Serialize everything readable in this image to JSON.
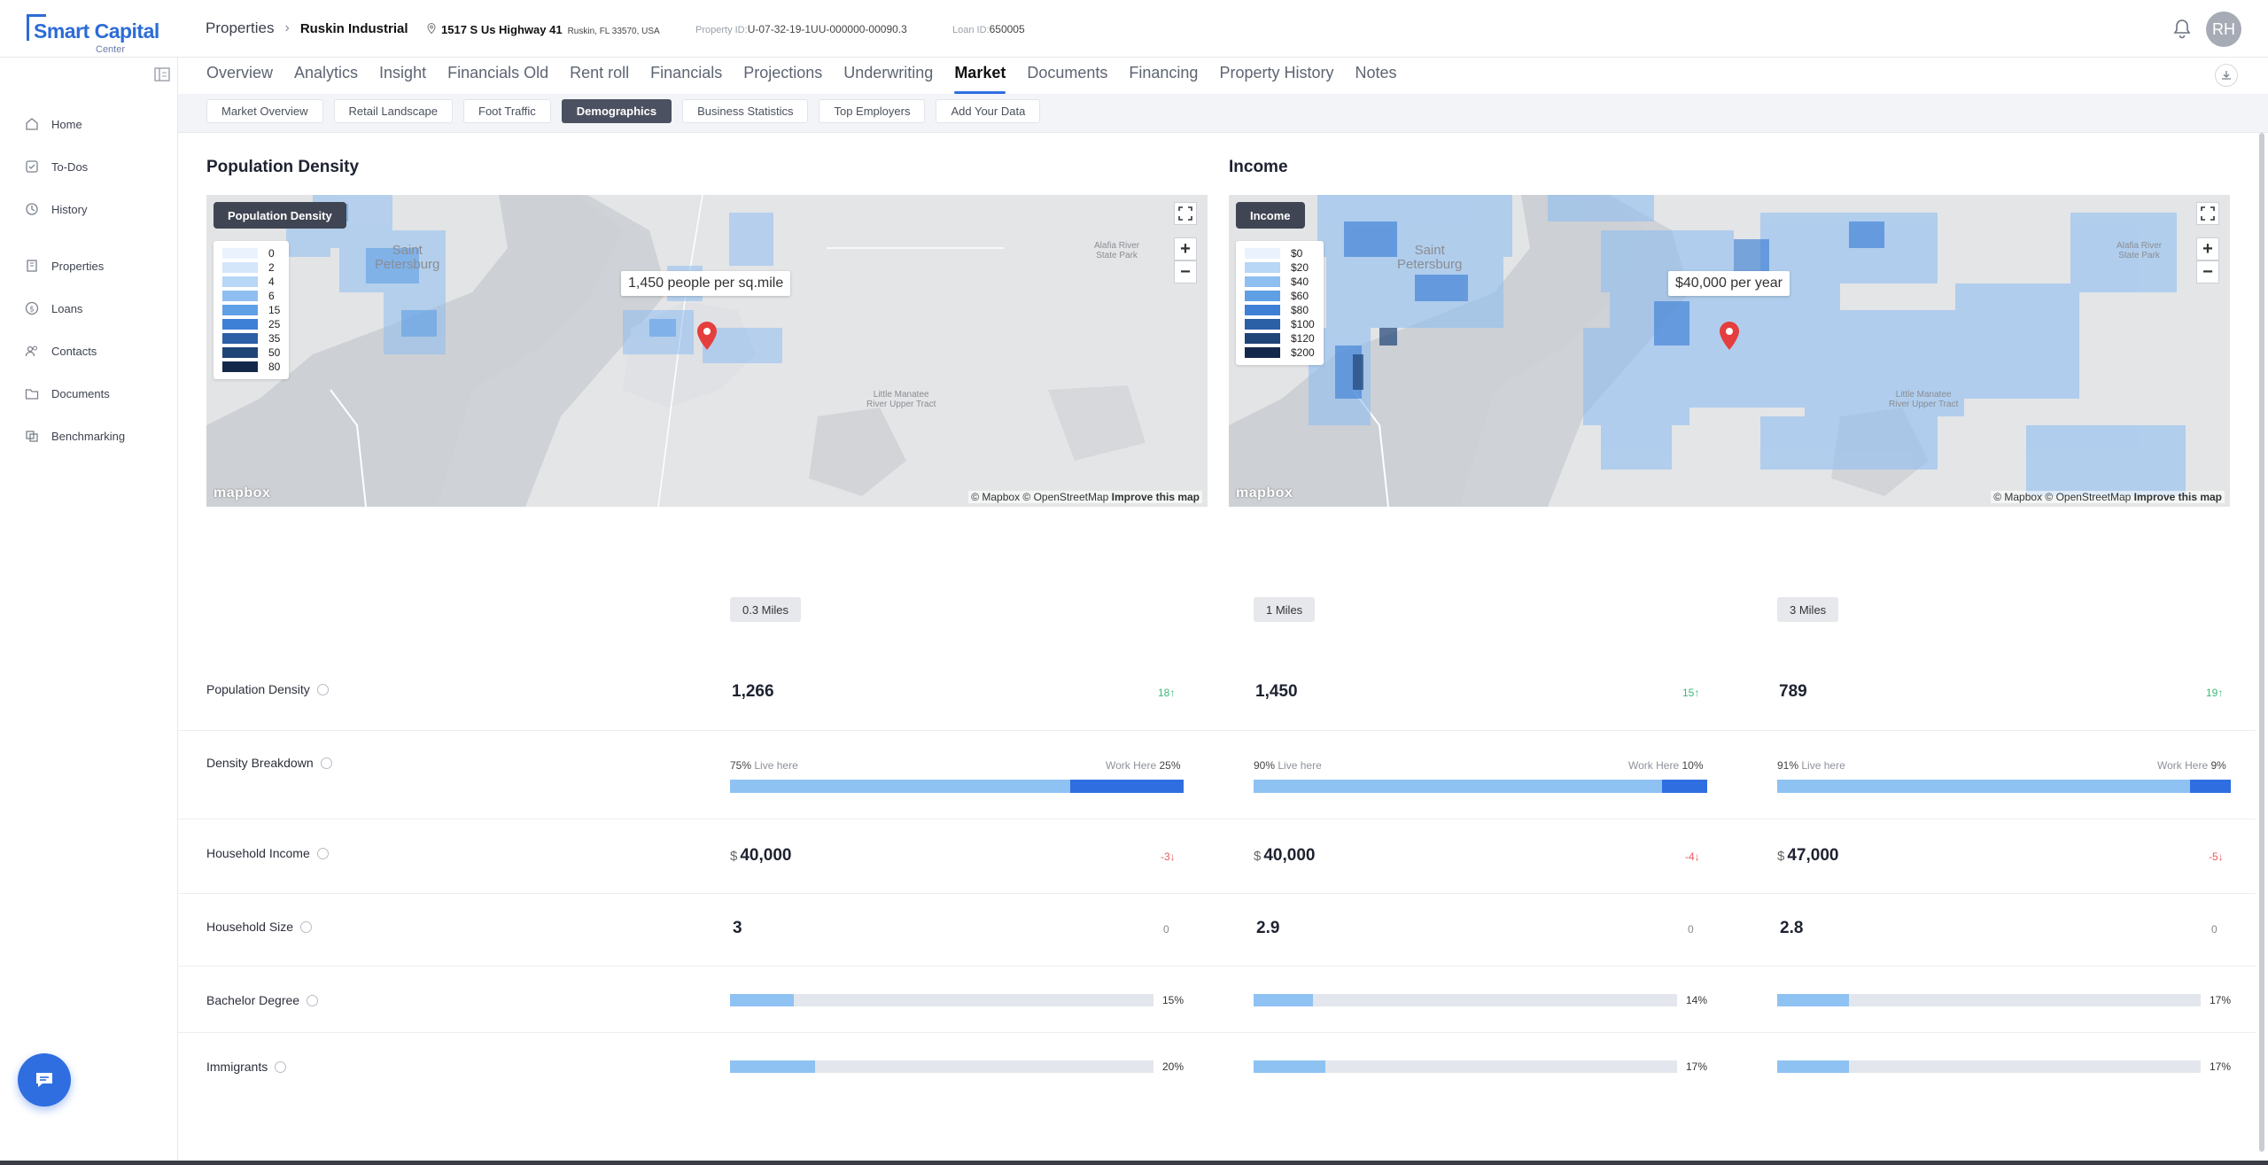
{
  "brand": {
    "name": "Smart Capital",
    "sub": "Center"
  },
  "breadcrumb": {
    "root": "Properties",
    "property": "Ruskin Industrial"
  },
  "address": {
    "street": "1517 S Us Highway 41",
    "city": "Ruskin, FL 33570, USA"
  },
  "property_id": {
    "label": "Property ID:",
    "value": "U-07-32-19-1UU-000000-00090.3"
  },
  "loan_id": {
    "label": "Loan ID:",
    "value": "650005"
  },
  "user": {
    "initials": "RH"
  },
  "sidebar": {
    "items": [
      {
        "label": "Home",
        "icon": "home-icon"
      },
      {
        "label": "To-Dos",
        "icon": "todo-icon"
      },
      {
        "label": "History",
        "icon": "clock-icon"
      },
      {
        "label": "Properties",
        "icon": "building-icon"
      },
      {
        "label": "Loans",
        "icon": "dollar-icon"
      },
      {
        "label": "Contacts",
        "icon": "contacts-icon"
      },
      {
        "label": "Documents",
        "icon": "folder-icon"
      },
      {
        "label": "Benchmarking",
        "icon": "benchmark-icon"
      }
    ]
  },
  "tabs": [
    "Overview",
    "Analytics",
    "Insight",
    "Financials Old",
    "Rent roll",
    "Financials",
    "Projections",
    "Underwriting",
    "Market",
    "Documents",
    "Financing",
    "Property History",
    "Notes"
  ],
  "active_tab": "Market",
  "subtabs": [
    "Market Overview",
    "Retail Landscape",
    "Foot Traffic",
    "Demographics",
    "Business Statistics",
    "Top Employers",
    "Add Your Data"
  ],
  "active_subtab": "Demographics",
  "maps": {
    "density": {
      "title": "Population Density",
      "badge": "Population Density",
      "legend": [
        "0",
        "2",
        "4",
        "6",
        "15",
        "25",
        "35",
        "50",
        "80"
      ],
      "tooltip": "1,450 people per sq.mile"
    },
    "income": {
      "title": "Income",
      "badge": "Income",
      "legend": [
        "$0",
        "$20",
        "$40",
        "$60",
        "$80",
        "$100",
        "$120",
        "$200"
      ],
      "tooltip": "$40,000 per year"
    },
    "places": {
      "city1": "Saint",
      "city2": "Petersburg",
      "park1": "Alafia River",
      "park2": "State Park",
      "tract1": "Little Manatee",
      "tract2": "River Upper Tract"
    },
    "logo": "mapbox",
    "attribution": "© Mapbox © OpenStreetMap",
    "improve": "Improve this map",
    "legend_colors": [
      "#eaf3fd",
      "#d3e6fa",
      "#b8d6f6",
      "#8fbef1",
      "#5f9fe6",
      "#3d80d6",
      "#2b5fa6",
      "#1f4477",
      "#14294a"
    ]
  },
  "ranges": [
    "0.3 Miles",
    "1 Miles",
    "3 Miles"
  ],
  "stats": {
    "population_density": {
      "label": "Population Density",
      "values": [
        "1,266",
        "1,450",
        "789"
      ],
      "changes": [
        "18",
        "15",
        "19"
      ]
    },
    "density_breakdown": {
      "label": "Density Breakdown",
      "live_label": "Live here",
      "work_label": "Work Here",
      "live": [
        "75%",
        "90%",
        "91%"
      ],
      "work": [
        "25%",
        "10%",
        "9%"
      ],
      "live_fraction": [
        0.75,
        0.9,
        0.91
      ]
    },
    "household_income": {
      "label": "Household Income",
      "currency": "$",
      "values": [
        "40,000",
        "40,000",
        "47,000"
      ],
      "changes": [
        "-3",
        "-4",
        "-5"
      ]
    },
    "household_size": {
      "label": "Household Size",
      "values": [
        "3",
        "2.9",
        "2.8"
      ],
      "changes": [
        "0",
        "0",
        "0"
      ]
    },
    "bachelor_degree": {
      "label": "Bachelor Degree",
      "values": [
        "15%",
        "14%",
        "17%"
      ],
      "fraction": [
        0.15,
        0.14,
        0.17
      ]
    },
    "immigrants": {
      "label": "Immigrants",
      "values": [
        "20%",
        "17%",
        "17%"
      ],
      "fraction": [
        0.2,
        0.17,
        0.17
      ]
    }
  },
  "colors": {
    "accent": "#2f6ee0",
    "bar_light": "#8ec2f2",
    "up": "#3cba79",
    "down": "#e65a5a"
  }
}
